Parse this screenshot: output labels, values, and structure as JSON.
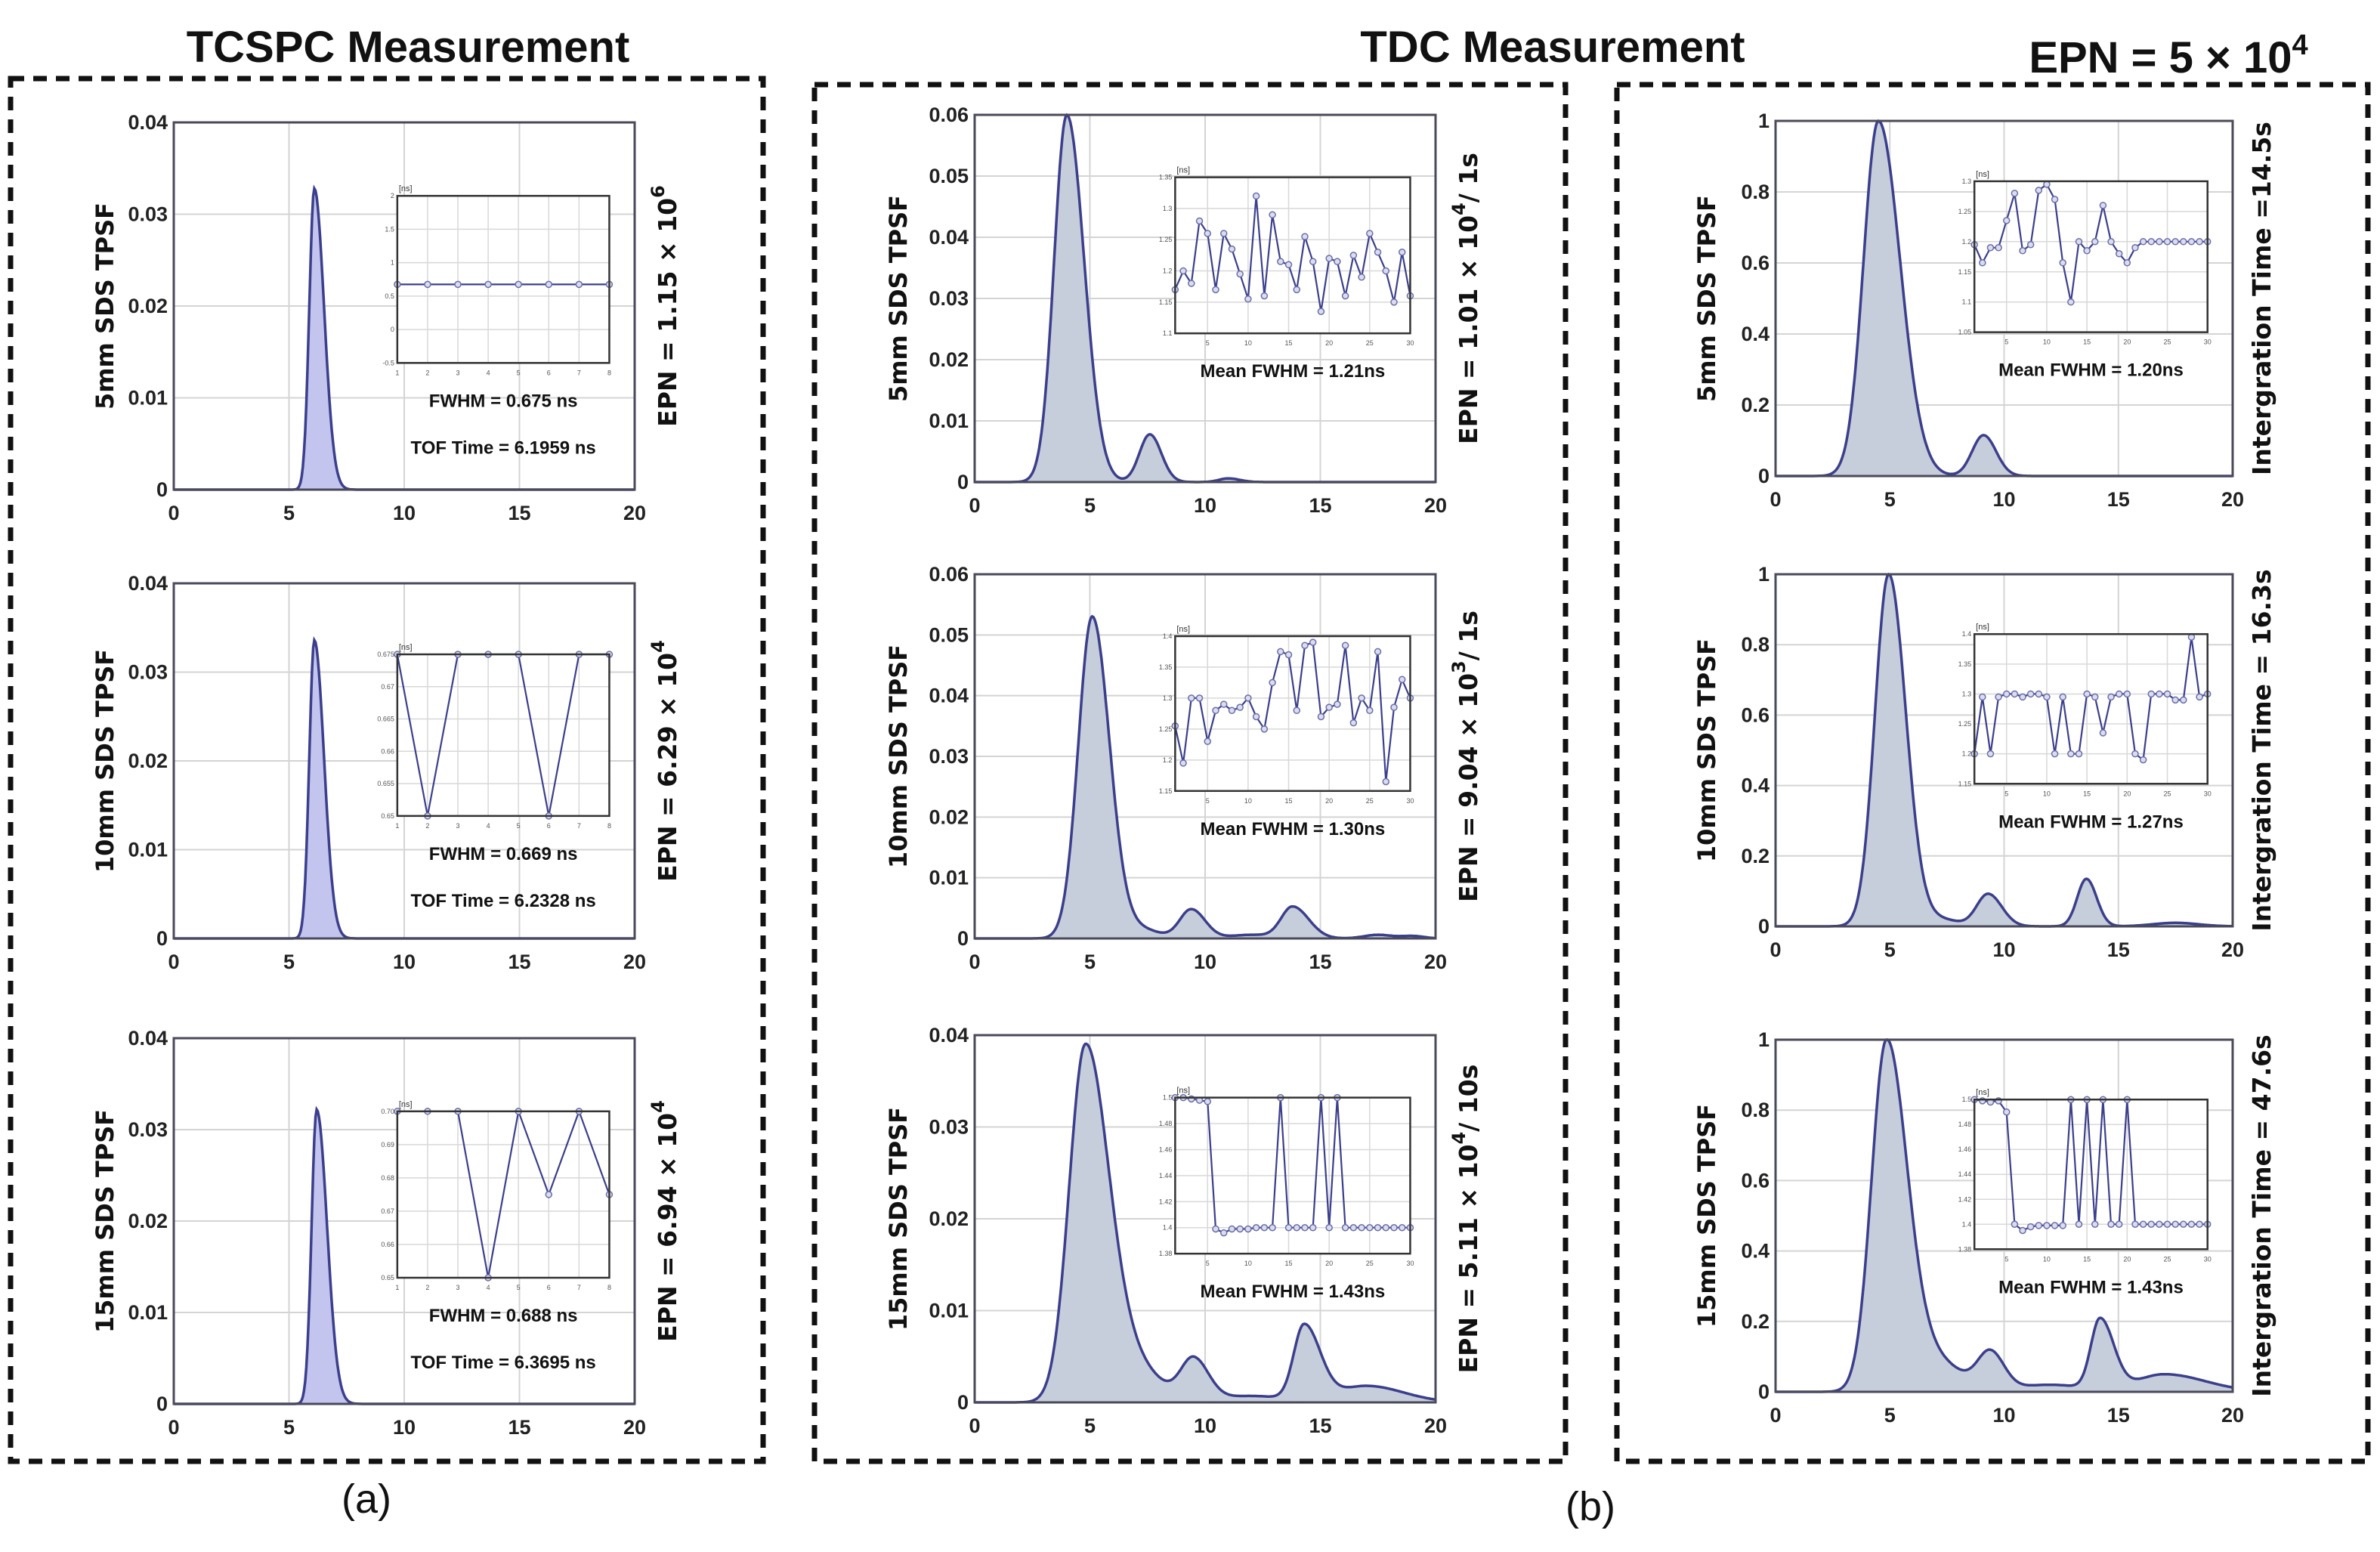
{
  "figure": {
    "titles": {
      "tcspc": "TCSPC Measurement",
      "tdc": "TDC Measurement",
      "epn_header": "EPN = 5 × 10",
      "epn_header_exp": "4"
    },
    "panel_labels": {
      "a": "(a)",
      "b": "(b)"
    },
    "colors": {
      "line": "#3b3f8c",
      "fill_tcspc": "#c3c5ef",
      "fill_tdc": "#c7cedb",
      "inset_marker": "#6a6fa8"
    }
  },
  "chart_data": [
    {
      "id": "tcspc-5mm",
      "column": "tcspc",
      "type": "area",
      "ylabel": "5mm SDS TPSF",
      "xlim": [
        0,
        20
      ],
      "ylim": [
        0,
        0.04
      ],
      "xticks": [
        "0",
        "5",
        "10",
        "15",
        "20"
      ],
      "yticks": [
        "0",
        "0.01",
        "0.02",
        "0.03",
        "0.04"
      ],
      "side_label": "EPN = 1.15 × 10",
      "side_label_exp": "6",
      "side_label_suffix": "",
      "peaks": [
        {
          "center": 6.1,
          "height": 0.0328,
          "rise": 0.22,
          "decay": 0.42
        }
      ],
      "inset": {
        "unit": "[ns]",
        "xlim": [
          1,
          8
        ],
        "ylim": [
          -0.5,
          2
        ],
        "xticks": [
          "1",
          "2",
          "3",
          "4",
          "5",
          "6",
          "7",
          "8"
        ],
        "yticks": [
          "-0.5",
          "0",
          "0.5",
          "1",
          "1.5",
          "2"
        ],
        "values": [
          0.675,
          0.675,
          0.675,
          0.675,
          0.675,
          0.675,
          0.675,
          0.675
        ]
      },
      "notes": [
        "FWHM = 0.675 ns",
        "TOF Time = 6.1959 ns"
      ]
    },
    {
      "id": "tcspc-10mm",
      "column": "tcspc",
      "type": "area",
      "ylabel": "10mm SDS TPSF",
      "xlim": [
        0,
        20
      ],
      "ylim": [
        0,
        0.04
      ],
      "xticks": [
        "0",
        "5",
        "10",
        "15",
        "20"
      ],
      "yticks": [
        "0",
        "0.01",
        "0.02",
        "0.03",
        "0.04"
      ],
      "side_label": "EPN = 6.29 × 10",
      "side_label_exp": "4",
      "side_label_suffix": "",
      "peaks": [
        {
          "center": 6.1,
          "height": 0.0336,
          "rise": 0.22,
          "decay": 0.42
        }
      ],
      "inset": {
        "unit": "[ns]",
        "xlim": [
          1,
          8
        ],
        "ylim": [
          0.65,
          0.675
        ],
        "xticks": [
          "1",
          "2",
          "3",
          "4",
          "5",
          "6",
          "7",
          "8"
        ],
        "yticks": [
          "0.65",
          "0.655",
          "0.66",
          "0.665",
          "0.67",
          "0.675"
        ],
        "values": [
          0.675,
          0.65,
          0.675,
          0.675,
          0.675,
          0.65,
          0.675,
          0.675
        ]
      },
      "notes": [
        "FWHM = 0.669 ns",
        "TOF Time = 6.2328 ns"
      ]
    },
    {
      "id": "tcspc-15mm",
      "column": "tcspc",
      "type": "area",
      "ylabel": "15mm SDS TPSF",
      "xlim": [
        0,
        20
      ],
      "ylim": [
        0,
        0.04
      ],
      "xticks": [
        "0",
        "5",
        "10",
        "15",
        "20"
      ],
      "yticks": [
        "0",
        "0.01",
        "0.02",
        "0.03",
        "0.04"
      ],
      "side_label": "EPN = 6.94 × 10",
      "side_label_exp": "4",
      "side_label_suffix": "",
      "peaks": [
        {
          "center": 6.2,
          "height": 0.0322,
          "rise": 0.22,
          "decay": 0.45
        }
      ],
      "inset": {
        "unit": "[ns]",
        "xlim": [
          1,
          8
        ],
        "ylim": [
          0.65,
          0.7
        ],
        "xticks": [
          "1",
          "2",
          "3",
          "4",
          "5",
          "6",
          "7",
          "8"
        ],
        "yticks": [
          "0.65",
          "0.66",
          "0.67",
          "0.68",
          "0.69",
          "0.70"
        ],
        "values": [
          0.7,
          0.7,
          0.7,
          0.65,
          0.7,
          0.675,
          0.7,
          0.675
        ]
      },
      "notes": [
        "FWHM = 0.688 ns",
        "TOF Time = 6.3695 ns"
      ]
    },
    {
      "id": "tdc-5mm",
      "column": "tdc",
      "type": "area",
      "ylabel": "5mm SDS TPSF",
      "xlim": [
        0,
        20
      ],
      "ylim": [
        0,
        0.06
      ],
      "xticks": [
        "0",
        "5",
        "10",
        "15",
        "20"
      ],
      "yticks": [
        "0",
        "0.01",
        "0.02",
        "0.03",
        "0.04",
        "0.05",
        "0.06"
      ],
      "side_label": "EPN = 1.01 × 10",
      "side_label_exp": "4",
      "side_label_suffix": "/ 1s",
      "peaks": [
        {
          "center": 4.0,
          "height": 0.06,
          "rise": 0.55,
          "decay": 0.75
        },
        {
          "center": 7.6,
          "height": 0.0078,
          "rise": 0.45,
          "decay": 0.5
        },
        {
          "center": 11.0,
          "height": 0.0006,
          "rise": 0.4,
          "decay": 0.5
        }
      ],
      "inset": {
        "unit": "[ns]",
        "xlim": [
          1,
          30
        ],
        "ylim": [
          1.1,
          1.35
        ],
        "xticks": [
          "5",
          "10",
          "15",
          "20",
          "25",
          "30"
        ],
        "yticks": [
          "1.1",
          "1.15",
          "1.2",
          "1.25",
          "1.3",
          "1.35"
        ],
        "values": [
          1.17,
          1.2,
          1.18,
          1.28,
          1.26,
          1.17,
          1.26,
          1.235,
          1.195,
          1.155,
          1.32,
          1.16,
          1.29,
          1.215,
          1.21,
          1.17,
          1.255,
          1.215,
          1.135,
          1.22,
          1.215,
          1.16,
          1.225,
          1.19,
          1.26,
          1.23,
          1.2,
          1.15,
          1.23,
          1.16
        ]
      },
      "notes": [
        "Mean FWHM = 1.21ns"
      ]
    },
    {
      "id": "tdc-10mm",
      "column": "tdc",
      "type": "area",
      "ylabel": "10mm SDS TPSF",
      "xlim": [
        0,
        20
      ],
      "ylim": [
        0,
        0.06
      ],
      "xticks": [
        "0",
        "5",
        "10",
        "15",
        "20"
      ],
      "yticks": [
        "0",
        "0.01",
        "0.02",
        "0.03",
        "0.04",
        "0.05",
        "0.06"
      ],
      "side_label": "EPN = 9.04 × 10",
      "side_label_exp": "3",
      "side_label_suffix": "/ 1s",
      "peaks": [
        {
          "center": 5.1,
          "height": 0.053,
          "rise": 0.6,
          "decay": 0.75
        },
        {
          "center": 9.4,
          "height": 0.0048,
          "rise": 0.5,
          "decay": 0.6
        },
        {
          "center": 13.8,
          "height": 0.0052,
          "rise": 0.5,
          "decay": 0.7
        },
        {
          "center": 7.2,
          "height": 0.0015,
          "rise": 0.8,
          "decay": 0.8
        },
        {
          "center": 12.0,
          "height": 0.0006,
          "rise": 0.9,
          "decay": 0.9
        },
        {
          "center": 17.5,
          "height": 0.0006,
          "rise": 0.6,
          "decay": 0.6
        },
        {
          "center": 19.0,
          "height": 0.0004,
          "rise": 0.5,
          "decay": 0.5
        }
      ],
      "inset": {
        "unit": "[ns]",
        "xlim": [
          1,
          30
        ],
        "ylim": [
          1.15,
          1.4
        ],
        "xticks": [
          "5",
          "10",
          "15",
          "20",
          "25",
          "30"
        ],
        "yticks": [
          "1.15",
          "1.2",
          "1.25",
          "1.3",
          "1.35",
          "1.4"
        ],
        "values": [
          1.255,
          1.195,
          1.3,
          1.3,
          1.23,
          1.28,
          1.29,
          1.28,
          1.285,
          1.3,
          1.27,
          1.25,
          1.325,
          1.375,
          1.37,
          1.28,
          1.385,
          1.39,
          1.27,
          1.285,
          1.29,
          1.385,
          1.26,
          1.3,
          1.28,
          1.375,
          1.165,
          1.285,
          1.33,
          1.3
        ]
      },
      "notes": [
        "Mean FWHM = 1.30ns"
      ]
    },
    {
      "id": "tdc-15mm",
      "column": "tdc",
      "type": "area",
      "ylabel": "15mm SDS TPSF",
      "xlim": [
        0,
        20
      ],
      "ylim": [
        0,
        0.04
      ],
      "xticks": [
        "0",
        "5",
        "10",
        "15",
        "20"
      ],
      "yticks": [
        "0",
        "0.01",
        "0.02",
        "0.03",
        "0.04"
      ],
      "side_label": "EPN = 5.11 × 10",
      "side_label_exp": "4",
      "side_label_suffix": "/ 10s",
      "peaks": [
        {
          "center": 4.8,
          "height": 0.0385,
          "rise": 0.7,
          "decay": 1.0
        },
        {
          "center": 6.8,
          "height": 0.004,
          "rise": 1.0,
          "decay": 1.2
        },
        {
          "center": 9.5,
          "height": 0.0045,
          "rise": 0.55,
          "decay": 0.65
        },
        {
          "center": 14.3,
          "height": 0.0082,
          "rise": 0.45,
          "decay": 0.7
        },
        {
          "center": 12.0,
          "height": 0.0007,
          "rise": 1.5,
          "decay": 1.5
        },
        {
          "center": 17.0,
          "height": 0.0018,
          "rise": 1.2,
          "decay": 1.6
        }
      ],
      "inset": {
        "unit": "[ns]",
        "xlim": [
          1,
          30
        ],
        "ylim": [
          1.38,
          1.5
        ],
        "xticks": [
          "5",
          "10",
          "15",
          "20",
          "25",
          "30"
        ],
        "yticks": [
          "1.38",
          "1.4",
          "1.42",
          "1.44",
          "1.46",
          "1.48",
          "1.5"
        ],
        "values": [
          1.5,
          1.5,
          1.499,
          1.498,
          1.497,
          1.399,
          1.396,
          1.399,
          1.399,
          1.399,
          1.4,
          1.4,
          1.4,
          1.5,
          1.4,
          1.4,
          1.4,
          1.4,
          1.5,
          1.4,
          1.5,
          1.4,
          1.4,
          1.4,
          1.4,
          1.4,
          1.4,
          1.4,
          1.4,
          1.4
        ]
      },
      "notes": [
        "Mean FWHM = 1.43ns"
      ]
    },
    {
      "id": "epn5e4-5mm",
      "column": "epn",
      "type": "area",
      "ylabel": "5mm SDS TPSF",
      "xlim": [
        0,
        20
      ],
      "ylim": [
        0,
        1
      ],
      "xticks": [
        "0",
        "5",
        "10",
        "15",
        "20"
      ],
      "yticks": [
        "0",
        "0.2",
        "0.4",
        "0.6",
        "0.8",
        "1"
      ],
      "side_label": "Intergration Time =14.5s",
      "side_label_exp": "",
      "side_label_suffix": "",
      "peaks": [
        {
          "center": 4.5,
          "height": 1.0,
          "rise": 0.65,
          "decay": 0.95
        },
        {
          "center": 9.1,
          "height": 0.115,
          "rise": 0.5,
          "decay": 0.55
        }
      ],
      "inset": {
        "unit": "[ns]",
        "xlim": [
          1,
          30
        ],
        "ylim": [
          1.05,
          1.3
        ],
        "xticks": [
          "5",
          "10",
          "15",
          "20",
          "25",
          "30"
        ],
        "yticks": [
          "1.05",
          "1.1",
          "1.15",
          "1.2",
          "1.25",
          "1.3"
        ],
        "values": [
          1.195,
          1.165,
          1.19,
          1.19,
          1.235,
          1.28,
          1.185,
          1.195,
          1.285,
          1.295,
          1.27,
          1.165,
          1.1,
          1.2,
          1.185,
          1.2,
          1.26,
          1.2,
          1.18,
          1.165,
          1.19,
          1.2,
          1.2,
          1.2,
          1.2,
          1.2,
          1.2,
          1.2,
          1.2,
          1.2
        ]
      },
      "notes": [
        "Mean FWHM = 1.20ns"
      ]
    },
    {
      "id": "epn5e4-10mm",
      "column": "epn",
      "type": "area",
      "ylabel": "10mm SDS TPSF",
      "xlim": [
        0,
        20
      ],
      "ylim": [
        0,
        1
      ],
      "xticks": [
        "0",
        "5",
        "10",
        "15",
        "20"
      ],
      "yticks": [
        "0",
        "0.2",
        "0.4",
        "0.6",
        "0.8",
        "1"
      ],
      "side_label": "Intergration Time = 16.3s",
      "side_label_exp": "",
      "side_label_suffix": "",
      "peaks": [
        {
          "center": 4.95,
          "height": 1.0,
          "rise": 0.6,
          "decay": 0.75
        },
        {
          "center": 9.3,
          "height": 0.092,
          "rise": 0.5,
          "decay": 0.6
        },
        {
          "center": 13.6,
          "height": 0.135,
          "rise": 0.4,
          "decay": 0.45
        },
        {
          "center": 7.2,
          "height": 0.02,
          "rise": 0.8,
          "decay": 0.8
        },
        {
          "center": 17.5,
          "height": 0.01,
          "rise": 1.0,
          "decay": 1.0
        }
      ],
      "inset": {
        "unit": "[ns]",
        "xlim": [
          1,
          30
        ],
        "ylim": [
          1.15,
          1.4
        ],
        "xticks": [
          "5",
          "10",
          "15",
          "20",
          "25",
          "30"
        ],
        "yticks": [
          "1.15",
          "1.2",
          "1.25",
          "1.3",
          "1.35",
          "1.4"
        ],
        "values": [
          1.2,
          1.295,
          1.2,
          1.295,
          1.3,
          1.3,
          1.295,
          1.3,
          1.3,
          1.295,
          1.2,
          1.295,
          1.2,
          1.2,
          1.3,
          1.295,
          1.235,
          1.295,
          1.3,
          1.3,
          1.2,
          1.19,
          1.3,
          1.3,
          1.3,
          1.29,
          1.29,
          1.395,
          1.295,
          1.3
        ]
      },
      "notes": [
        "Mean FWHM = 1.27ns"
      ]
    },
    {
      "id": "epn5e4-15mm",
      "column": "epn",
      "type": "area",
      "ylabel": "15mm SDS TPSF",
      "xlim": [
        0,
        20
      ],
      "ylim": [
        0,
        1
      ],
      "xticks": [
        "0",
        "5",
        "10",
        "15",
        "20"
      ],
      "yticks": [
        "0",
        "0.2",
        "0.4",
        "0.6",
        "0.8",
        "1"
      ],
      "side_label": "Intergration Time = 47.6s",
      "side_label_exp": "",
      "side_label_suffix": "",
      "peaks": [
        {
          "center": 4.85,
          "height": 0.99,
          "rise": 0.65,
          "decay": 0.9
        },
        {
          "center": 6.9,
          "height": 0.09,
          "rise": 1.0,
          "decay": 1.2
        },
        {
          "center": 9.4,
          "height": 0.105,
          "rise": 0.55,
          "decay": 0.6
        },
        {
          "center": 14.2,
          "height": 0.2,
          "rise": 0.4,
          "decay": 0.6
        },
        {
          "center": 12.0,
          "height": 0.02,
          "rise": 1.5,
          "decay": 1.5
        },
        {
          "center": 17.0,
          "height": 0.05,
          "rise": 1.2,
          "decay": 1.8
        }
      ],
      "inset": {
        "unit": "[ns]",
        "xlim": [
          1,
          30
        ],
        "ylim": [
          1.38,
          1.5
        ],
        "xticks": [
          "5",
          "10",
          "15",
          "20",
          "25",
          "30"
        ],
        "yticks": [
          "1.38",
          "1.4",
          "1.42",
          "1.44",
          "1.46",
          "1.48",
          "1.5"
        ],
        "values": [
          1.5,
          1.499,
          1.498,
          1.499,
          1.49,
          1.4,
          1.395,
          1.398,
          1.399,
          1.399,
          1.399,
          1.399,
          1.5,
          1.4,
          1.5,
          1.4,
          1.5,
          1.4,
          1.4,
          1.5,
          1.4,
          1.4,
          1.4,
          1.4,
          1.4,
          1.4,
          1.4,
          1.4,
          1.4,
          1.4
        ]
      },
      "notes": [
        "Mean FWHM = 1.43ns"
      ]
    }
  ]
}
